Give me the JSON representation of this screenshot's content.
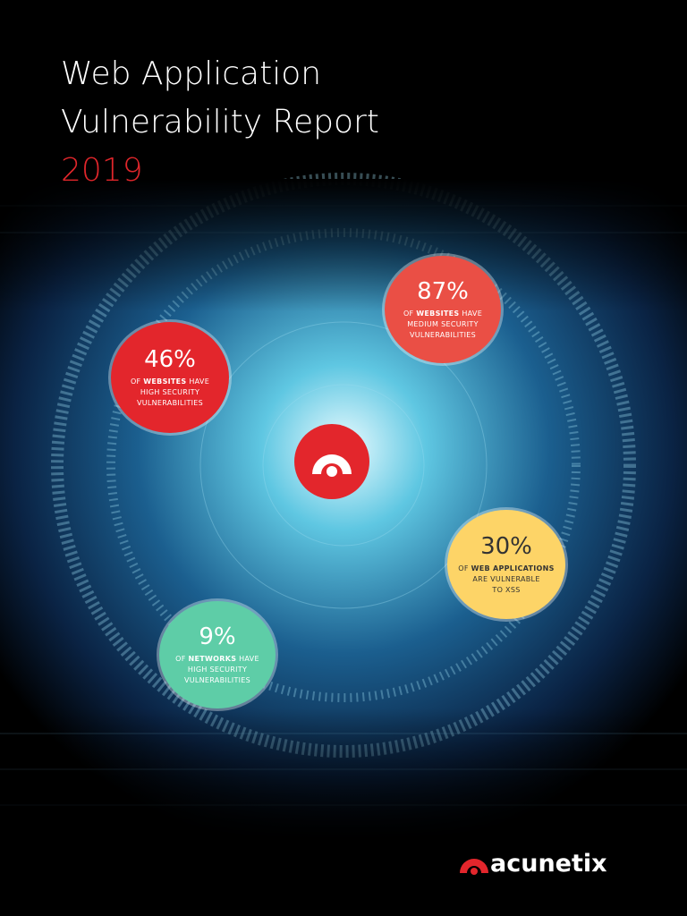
{
  "header": {
    "title_lines": [
      "Web Application",
      "Vulnerability Report"
    ],
    "year": "2019"
  },
  "stats": [
    {
      "value": "46%",
      "prefix": "OF",
      "bold": "WEBSITES",
      "suffix": "HAVE",
      "lines": [
        "HIGH SECURITY",
        "VULNERABILITIES"
      ]
    },
    {
      "value": "87%",
      "prefix": "OF",
      "bold": "WEBSITES",
      "suffix": "HAVE",
      "lines": [
        "MEDIUM SECURITY",
        "VULNERABILITIES"
      ]
    },
    {
      "value": "30%",
      "prefix": "OF",
      "bold": "WEB APPLICATIONS",
      "lines": [
        "ARE VULNERABLE",
        "TO XSS"
      ]
    },
    {
      "value": "9%",
      "prefix": "OF",
      "bold": "NETWORKS",
      "suffix": "HAVE",
      "lines": [
        "HIGH SECURITY",
        "VULNERABILITIES"
      ]
    }
  ],
  "footer": {
    "brand": "acunetix"
  }
}
